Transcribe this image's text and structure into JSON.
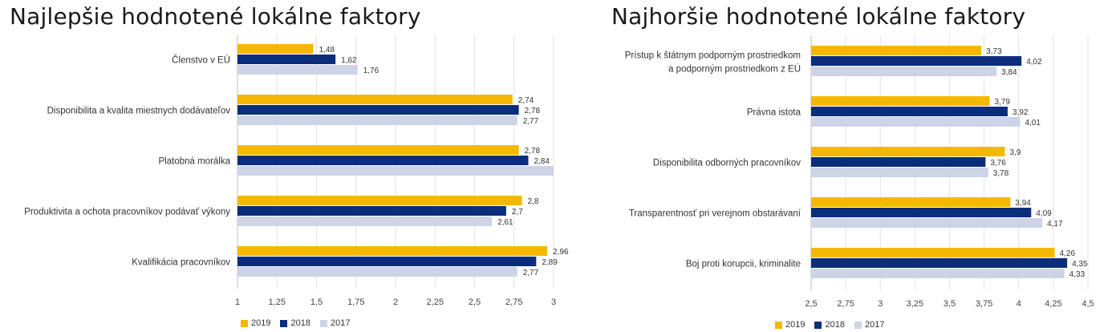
{
  "chart_data": [
    {
      "type": "bar",
      "orientation": "horizontal",
      "title": "Najlepšie hodnotené lokálne faktory",
      "categories": [
        "Členstvo v EÚ",
        "Disponibilita a kvalita miestnych dodávateľov",
        "Platobná morálka",
        "Produktivita a ochota pracovníkov podávať výkony",
        "Kvalifikácia pracovníkov"
      ],
      "series": [
        {
          "name": "2019",
          "color": "#F5B800",
          "values": [
            1.48,
            2.74,
            2.78,
            2.8,
            2.96
          ],
          "labels": [
            "1,48",
            "2,74",
            "2,78",
            "2,8",
            "2,96"
          ]
        },
        {
          "name": "2018",
          "color": "#0B2D7A",
          "values": [
            1.62,
            2.78,
            2.84,
            2.7,
            2.89
          ],
          "labels": [
            "1,62",
            "2,78",
            "2,84",
            "2,7",
            "2,89"
          ]
        },
        {
          "name": "2017",
          "color": "#CCD4E6",
          "values": [
            1.76,
            2.77,
            3.0,
            2.61,
            2.77
          ],
          "labels": [
            "1,76",
            "2,77",
            "",
            "2,61",
            "2,77"
          ]
        }
      ],
      "xlim": [
        1,
        3
      ],
      "ticks": [
        1,
        1.25,
        1.5,
        1.75,
        2,
        2.25,
        2.5,
        2.75,
        3
      ],
      "tick_labels": [
        "1",
        "1,25",
        "1,5",
        "1,75",
        "2",
        "2,25",
        "2,5",
        "2,75",
        "3"
      ],
      "grid": true,
      "legend": [
        "2019",
        "2018",
        "2017"
      ],
      "legend_position": "bottom"
    },
    {
      "type": "bar",
      "orientation": "horizontal",
      "title": "Najhoršie hodnotené lokálne faktory",
      "categories": [
        [
          "Prístup k štátnym podporným prostriedkom",
          "a podporným prostriedkom z EÚ"
        ],
        [
          "Právna istota"
        ],
        [
          "Disponibilita odborných pracovníkov"
        ],
        [
          "Transparentnosť pri verejnom obstarávaní"
        ],
        [
          "Boj proti korupcii, kriminalite"
        ]
      ],
      "series": [
        {
          "name": "2019",
          "color": "#F5B800",
          "values": [
            3.73,
            3.79,
            3.9,
            3.94,
            4.26
          ],
          "labels": [
            "3,73",
            "3,79",
            "3,9",
            "3,94",
            "4,26"
          ]
        },
        {
          "name": "2018",
          "color": "#0B2D7A",
          "values": [
            4.02,
            3.92,
            3.76,
            4.09,
            4.35
          ],
          "labels": [
            "4,02",
            "3,92",
            "3,76",
            "4,09",
            "4,35"
          ]
        },
        {
          "name": "2017",
          "color": "#CCD4E6",
          "values": [
            3.84,
            4.01,
            3.78,
            4.17,
            4.33
          ],
          "labels": [
            "3,84",
            "4,01",
            "3,78",
            "4,17",
            "4,33"
          ]
        }
      ],
      "xlim": [
        2.5,
        4.5
      ],
      "ticks": [
        2.5,
        2.75,
        3,
        3.25,
        3.5,
        3.75,
        4,
        4.25,
        4.5
      ],
      "tick_labels": [
        "2,5",
        "2,75",
        "3",
        "3,25",
        "3,5",
        "3,75",
        "4",
        "4,25",
        "4,5"
      ],
      "grid": true,
      "legend": [
        "2019",
        "2018",
        "2017"
      ],
      "legend_position": "bottom"
    }
  ]
}
